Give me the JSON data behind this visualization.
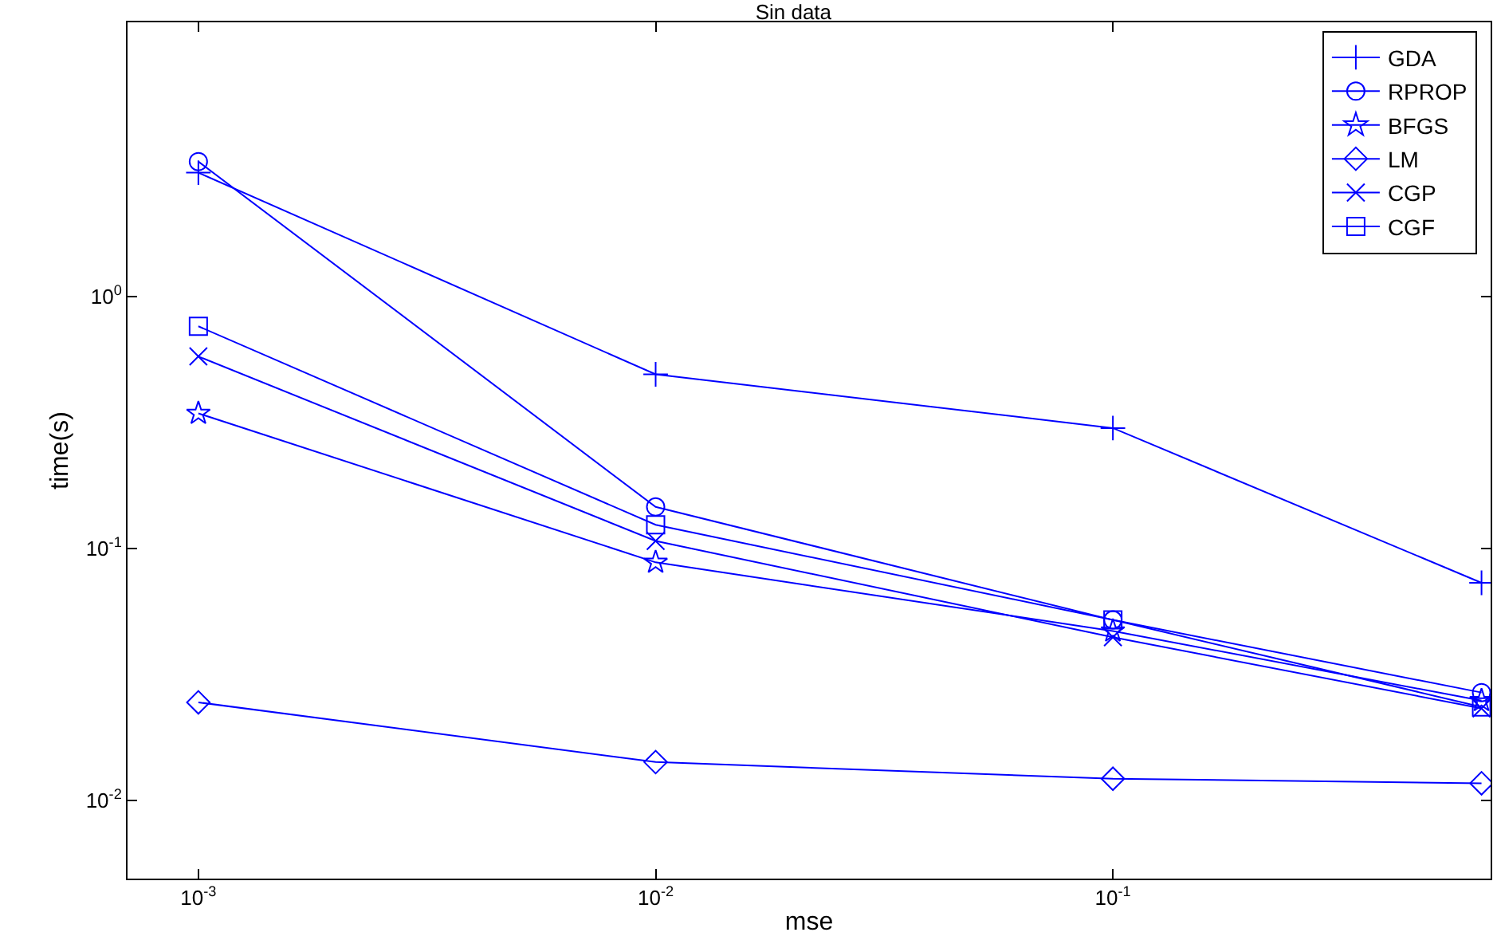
{
  "chart_data": {
    "type": "line",
    "title": "Sin data",
    "xlabel": "mse",
    "ylabel": "time(s)",
    "log": "xy",
    "grid": false,
    "legend": "top right",
    "line_style": "solid",
    "xlim": [
      0.0007,
      0.67
    ],
    "ylim": [
      0.0049,
      12.2
    ],
    "xticks": [
      {
        "value": 0.001,
        "label": "10$^{-3}$"
      },
      {
        "value": 0.01,
        "label": "10$^{-2}$"
      },
      {
        "value": 0.1,
        "label": "10$^{-1}$"
      }
    ],
    "yticks": [
      {
        "value": 0.01,
        "label": "10$^{-2}$"
      },
      {
        "value": 0.1,
        "label": "10$^{-1}$"
      },
      {
        "value": 1,
        "label": "10$^{0}$"
      }
    ],
    "x": [
      0.001,
      0.01,
      0.1,
      0.64
    ],
    "series": [
      {
        "name": "GDA",
        "color": "#0000ff",
        "marker": "cross",
        "values": [
          3.09,
          0.49,
          0.3,
          0.073
        ]
      },
      {
        "name": "RPROP",
        "color": "#0000ff",
        "marker": "circle",
        "values": [
          3.42,
          0.146,
          0.052,
          0.0268
        ]
      },
      {
        "name": "BFGS",
        "color": "#0000ff",
        "marker": "star",
        "values": [
          0.343,
          0.088,
          0.047,
          0.0249
        ]
      },
      {
        "name": "LM",
        "color": "#0000ff",
        "marker": "diamond",
        "values": [
          0.0245,
          0.0142,
          0.0122,
          0.0117
        ]
      },
      {
        "name": "CGP",
        "color": "#0000ff",
        "marker": "x",
        "values": [
          0.577,
          0.107,
          0.0444,
          0.0232
        ]
      },
      {
        "name": "CGF",
        "color": "#0000ff",
        "marker": "square",
        "values": [
          0.76,
          0.124,
          0.052,
          0.0235
        ]
      }
    ]
  }
}
